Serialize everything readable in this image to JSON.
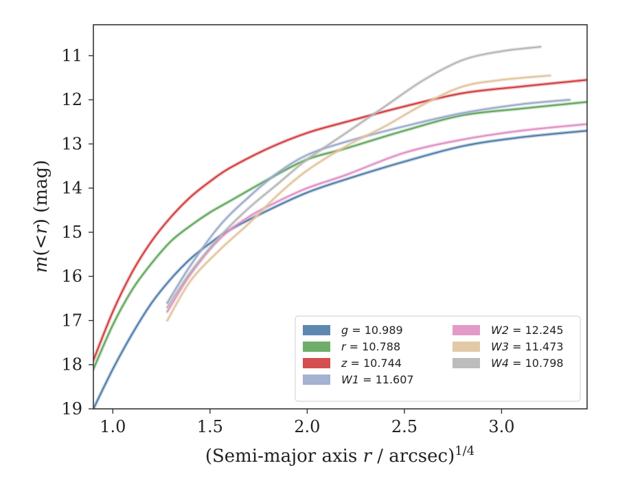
{
  "chart_data": {
    "type": "line",
    "xlabel": "(Semi-major axis r / arcsec)^{1/4}",
    "ylabel": "m(<r) (mag)",
    "xlim": [
      0.9,
      3.44
    ],
    "ylim": [
      19,
      10.3
    ],
    "y_inverted": true,
    "grid": false,
    "legend_position": "lower-right",
    "legend_columns": 2,
    "xticks": [
      "1.0",
      "1.5",
      "2.0",
      "2.5",
      "3.0"
    ],
    "yticks": [
      "11",
      "12",
      "13",
      "14",
      "15",
      "16",
      "17",
      "18",
      "19"
    ],
    "series": [
      {
        "name": "g = 10.989",
        "band": "g",
        "total": "10.989",
        "color": "#4e7ba8",
        "x": [
          0.9,
          1.0,
          1.1,
          1.2,
          1.3,
          1.4,
          1.5,
          1.6,
          1.8,
          2.0,
          2.2,
          2.5,
          2.8,
          3.1,
          3.44
        ],
        "y": [
          19.0,
          18.1,
          17.3,
          16.6,
          16.05,
          15.6,
          15.25,
          14.95,
          14.5,
          14.1,
          13.8,
          13.4,
          13.05,
          12.85,
          12.7
        ]
      },
      {
        "name": "r = 10.788",
        "band": "r",
        "total": "10.788",
        "color": "#5fa55a",
        "x": [
          0.9,
          1.0,
          1.1,
          1.2,
          1.3,
          1.4,
          1.5,
          1.6,
          1.8,
          2.0,
          2.2,
          2.5,
          2.8,
          3.1,
          3.44
        ],
        "y": [
          18.1,
          17.1,
          16.3,
          15.7,
          15.2,
          14.85,
          14.55,
          14.3,
          13.8,
          13.35,
          13.1,
          12.7,
          12.35,
          12.2,
          12.05
        ]
      },
      {
        "name": "z = 10.744",
        "band": "z",
        "total": "10.744",
        "color": "#d03b3d",
        "x": [
          0.9,
          1.0,
          1.1,
          1.2,
          1.3,
          1.4,
          1.5,
          1.6,
          1.8,
          2.0,
          2.2,
          2.5,
          2.8,
          3.1,
          3.44
        ],
        "y": [
          17.9,
          16.8,
          15.9,
          15.2,
          14.65,
          14.2,
          13.85,
          13.55,
          13.1,
          12.75,
          12.5,
          12.15,
          11.85,
          11.7,
          11.55
        ]
      },
      {
        "name": "W1 = 11.607",
        "band": "W1",
        "total": "11.607",
        "color": "#9aa8cb",
        "x": [
          1.28,
          1.4,
          1.55,
          1.7,
          1.85,
          2.0,
          2.2,
          2.5,
          2.8,
          3.1,
          3.35
        ],
        "y": [
          16.6,
          15.75,
          14.85,
          14.2,
          13.65,
          13.25,
          12.95,
          12.6,
          12.3,
          12.1,
          12.0
        ]
      },
      {
        "name": "W2 = 12.245",
        "band": "W2",
        "total": "12.245",
        "color": "#e08fc2",
        "x": [
          1.28,
          1.4,
          1.55,
          1.7,
          1.85,
          2.0,
          2.2,
          2.5,
          2.8,
          3.1,
          3.44
        ],
        "y": [
          16.8,
          15.95,
          15.15,
          14.65,
          14.3,
          14.0,
          13.7,
          13.2,
          12.9,
          12.7,
          12.55
        ]
      },
      {
        "name": "W3 = 11.473",
        "band": "W3",
        "total": "11.473",
        "color": "#e1c39c",
        "x": [
          1.28,
          1.4,
          1.55,
          1.7,
          1.85,
          2.0,
          2.2,
          2.4,
          2.6,
          2.8,
          3.0,
          3.25
        ],
        "y": [
          17.0,
          16.1,
          15.4,
          14.8,
          14.15,
          13.6,
          13.05,
          12.6,
          12.1,
          11.7,
          11.55,
          11.45
        ]
      },
      {
        "name": "W4 = 10.798",
        "band": "W4",
        "total": "10.798",
        "color": "#b5b5b5",
        "x": [
          1.28,
          1.4,
          1.55,
          1.7,
          1.85,
          2.0,
          2.2,
          2.4,
          2.6,
          2.8,
          3.0,
          3.2
        ],
        "y": [
          16.7,
          15.9,
          15.1,
          14.45,
          13.9,
          13.35,
          12.75,
          12.15,
          11.55,
          11.1,
          10.9,
          10.8
        ]
      }
    ]
  }
}
